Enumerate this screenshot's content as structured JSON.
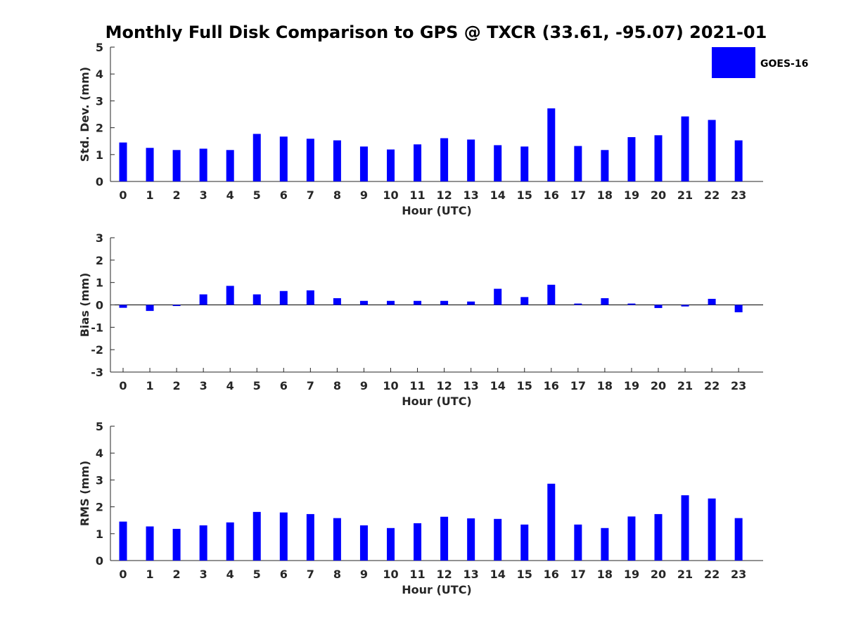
{
  "title": "Monthly Full Disk Comparison to GPS @ TXCR (33.61, -95.07) 2021-01",
  "legend": {
    "label": "GOES-16",
    "color": "#0000ff"
  },
  "chart_data": [
    {
      "type": "bar",
      "name": "std",
      "ylabel": "Std. Dev. (mm)",
      "xlabel": "Hour (UTC)",
      "ylim": [
        0,
        5
      ],
      "yticks": [
        "0",
        "1",
        "2",
        "3",
        "4",
        "5"
      ],
      "categories": [
        "0",
        "1",
        "2",
        "3",
        "4",
        "5",
        "6",
        "7",
        "8",
        "9",
        "10",
        "11",
        "12",
        "13",
        "14",
        "15",
        "16",
        "17",
        "18",
        "19",
        "20",
        "21",
        "22",
        "23"
      ],
      "series": [
        {
          "name": "GOES-16",
          "values": [
            1.45,
            1.25,
            1.17,
            1.22,
            1.17,
            1.77,
            1.67,
            1.59,
            1.53,
            1.3,
            1.19,
            1.38,
            1.61,
            1.56,
            1.35,
            1.3,
            2.72,
            1.32,
            1.17,
            1.65,
            1.72,
            2.42,
            2.29,
            1.53
          ]
        }
      ]
    },
    {
      "type": "bar",
      "name": "bias",
      "ylabel": "Bias (mm)",
      "xlabel": "Hour (UTC)",
      "ylim": [
        -3,
        3
      ],
      "yticks": [
        "-3",
        "-2",
        "-1",
        "0",
        "1",
        "2",
        "3"
      ],
      "categories": [
        "0",
        "1",
        "2",
        "3",
        "4",
        "5",
        "6",
        "7",
        "8",
        "9",
        "10",
        "11",
        "12",
        "13",
        "14",
        "15",
        "16",
        "17",
        "18",
        "19",
        "20",
        "21",
        "22",
        "23"
      ],
      "series": [
        {
          "name": "GOES-16",
          "values": [
            -0.13,
            -0.27,
            -0.05,
            0.47,
            0.85,
            0.47,
            0.62,
            0.65,
            0.3,
            0.18,
            0.18,
            0.18,
            0.18,
            0.15,
            0.72,
            0.35,
            0.9,
            0.06,
            0.3,
            0.06,
            -0.14,
            -0.07,
            0.27,
            -0.33
          ]
        }
      ]
    },
    {
      "type": "bar",
      "name": "rms",
      "ylabel": "RMS (mm)",
      "xlabel": "Hour (UTC)",
      "ylim": [
        0,
        5
      ],
      "yticks": [
        "0",
        "1",
        "2",
        "3",
        "4",
        "5"
      ],
      "categories": [
        "0",
        "1",
        "2",
        "3",
        "4",
        "5",
        "6",
        "7",
        "8",
        "9",
        "10",
        "11",
        "12",
        "13",
        "14",
        "15",
        "16",
        "17",
        "18",
        "19",
        "20",
        "21",
        "22",
        "23"
      ],
      "series": [
        {
          "name": "GOES-16",
          "values": [
            1.45,
            1.27,
            1.18,
            1.31,
            1.42,
            1.81,
            1.79,
            1.73,
            1.58,
            1.31,
            1.21,
            1.39,
            1.63,
            1.57,
            1.55,
            1.34,
            2.86,
            1.34,
            1.21,
            1.64,
            1.73,
            2.43,
            2.31,
            1.58
          ]
        }
      ]
    }
  ]
}
